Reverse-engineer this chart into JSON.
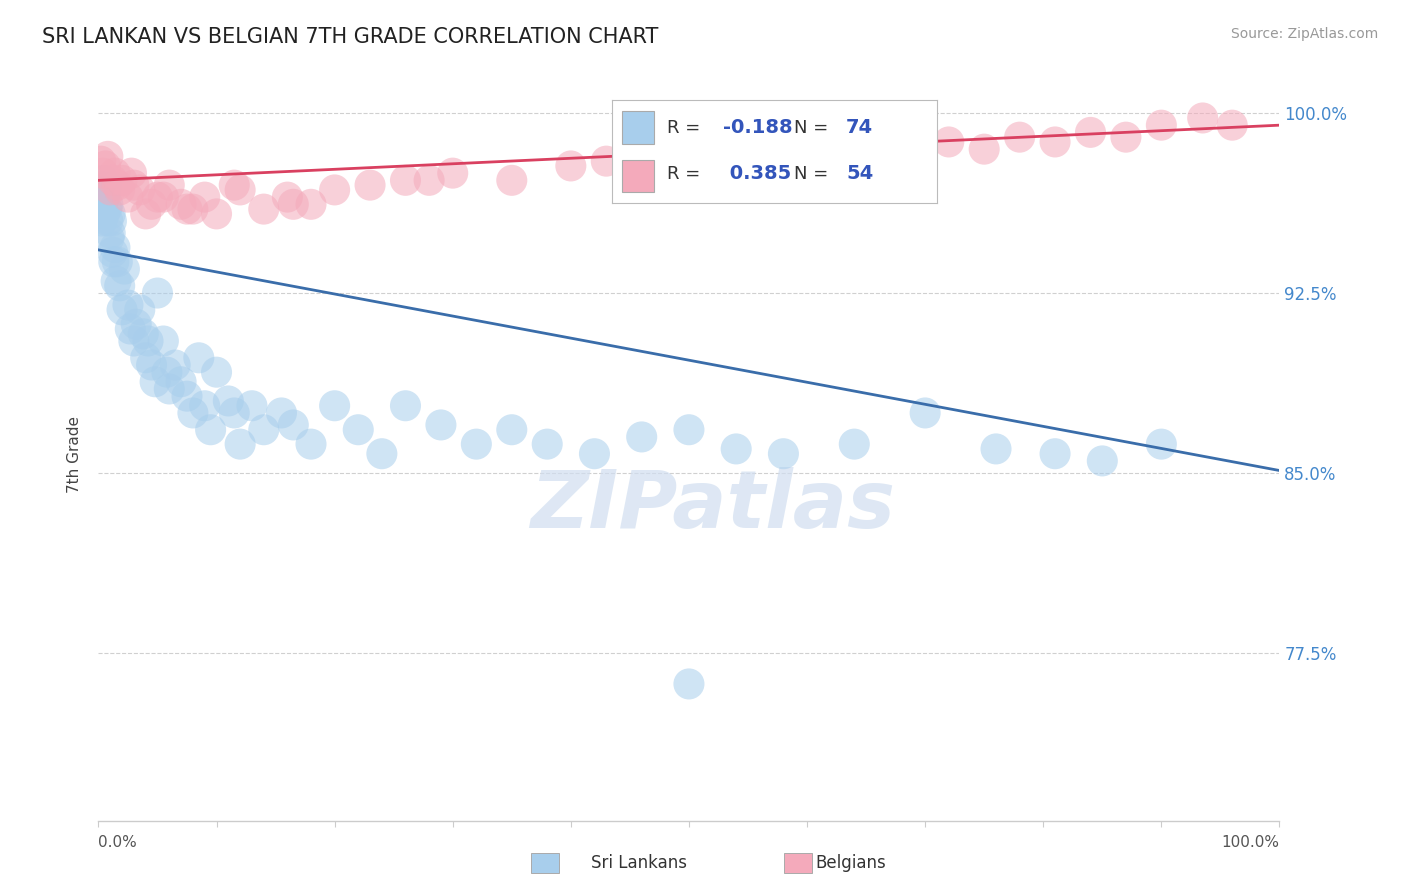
{
  "title": "SRI LANKAN VS BELGIAN 7TH GRADE CORRELATION CHART",
  "source_text": "Source: ZipAtlas.com",
  "ylabel": "7th Grade",
  "ytick_labels": [
    "100.0%",
    "92.5%",
    "85.0%",
    "77.5%"
  ],
  "ytick_values": [
    1.0,
    0.925,
    0.85,
    0.775
  ],
  "xlim": [
    0.0,
    1.0
  ],
  "ylim": [
    0.705,
    1.01
  ],
  "sri_lankan_color": "#A8CEEC",
  "belgian_color": "#F4AABB",
  "sri_lankan_line_color": "#3A6DAA",
  "belgian_line_color": "#D94060",
  "legend_sri_lankan_label": "Sri Lankans",
  "legend_belgian_label": "Belgians",
  "R_sri": -0.188,
  "N_sri": 74,
  "R_bel": 0.385,
  "N_bel": 54,
  "watermark": "ZIPatlas",
  "background_color": "#ffffff",
  "grid_color": "#d0d0d0",
  "sri_line_x0": 0.0,
  "sri_line_y0": 0.943,
  "sri_line_x1": 1.0,
  "sri_line_y1": 0.851,
  "bel_line_x0": 0.0,
  "bel_line_y0": 0.972,
  "bel_line_x1": 1.0,
  "bel_line_y1": 0.995,
  "sri_x": [
    0.002,
    0.003,
    0.003,
    0.004,
    0.004,
    0.005,
    0.005,
    0.006,
    0.007,
    0.007,
    0.008,
    0.008,
    0.009,
    0.01,
    0.01,
    0.011,
    0.012,
    0.013,
    0.014,
    0.015,
    0.016,
    0.018,
    0.02,
    0.022,
    0.025,
    0.027,
    0.03,
    0.032,
    0.035,
    0.038,
    0.04,
    0.042,
    0.045,
    0.048,
    0.05,
    0.055,
    0.058,
    0.06,
    0.065,
    0.07,
    0.075,
    0.08,
    0.085,
    0.09,
    0.095,
    0.1,
    0.11,
    0.115,
    0.12,
    0.13,
    0.14,
    0.155,
    0.165,
    0.18,
    0.2,
    0.22,
    0.24,
    0.26,
    0.29,
    0.32,
    0.35,
    0.38,
    0.42,
    0.46,
    0.5,
    0.54,
    0.58,
    0.64,
    0.7,
    0.76,
    0.81,
    0.85,
    0.9,
    0.5
  ],
  "sri_y": [
    0.96,
    0.968,
    0.955,
    0.972,
    0.963,
    0.965,
    0.958,
    0.967,
    0.97,
    0.96,
    0.955,
    0.962,
    0.948,
    0.958,
    0.95,
    0.955,
    0.942,
    0.938,
    0.944,
    0.93,
    0.938,
    0.928,
    0.918,
    0.935,
    0.92,
    0.91,
    0.905,
    0.912,
    0.918,
    0.908,
    0.898,
    0.905,
    0.895,
    0.888,
    0.925,
    0.905,
    0.892,
    0.885,
    0.895,
    0.888,
    0.882,
    0.875,
    0.898,
    0.878,
    0.868,
    0.892,
    0.88,
    0.875,
    0.862,
    0.878,
    0.868,
    0.875,
    0.87,
    0.862,
    0.878,
    0.868,
    0.858,
    0.878,
    0.87,
    0.862,
    0.868,
    0.862,
    0.858,
    0.865,
    0.868,
    0.86,
    0.858,
    0.862,
    0.875,
    0.86,
    0.858,
    0.855,
    0.862,
    0.762
  ],
  "bel_x": [
    0.002,
    0.004,
    0.006,
    0.008,
    0.01,
    0.012,
    0.014,
    0.016,
    0.018,
    0.02,
    0.025,
    0.03,
    0.035,
    0.04,
    0.05,
    0.06,
    0.07,
    0.08,
    0.09,
    0.1,
    0.12,
    0.14,
    0.16,
    0.18,
    0.2,
    0.23,
    0.26,
    0.3,
    0.35,
    0.4,
    0.43,
    0.46,
    0.49,
    0.53,
    0.56,
    0.6,
    0.65,
    0.69,
    0.72,
    0.75,
    0.78,
    0.81,
    0.84,
    0.87,
    0.9,
    0.935,
    0.96,
    0.115,
    0.045,
    0.028,
    0.075,
    0.055,
    0.165,
    0.28
  ],
  "bel_y": [
    0.98,
    0.975,
    0.978,
    0.982,
    0.968,
    0.972,
    0.975,
    0.97,
    0.968,
    0.972,
    0.965,
    0.97,
    0.968,
    0.958,
    0.965,
    0.97,
    0.962,
    0.96,
    0.965,
    0.958,
    0.968,
    0.96,
    0.965,
    0.962,
    0.968,
    0.97,
    0.972,
    0.975,
    0.972,
    0.978,
    0.98,
    0.975,
    0.982,
    0.978,
    0.98,
    0.985,
    0.982,
    0.985,
    0.988,
    0.985,
    0.99,
    0.988,
    0.992,
    0.99,
    0.995,
    0.998,
    0.995,
    0.97,
    0.962,
    0.975,
    0.96,
    0.965,
    0.962,
    0.972
  ]
}
